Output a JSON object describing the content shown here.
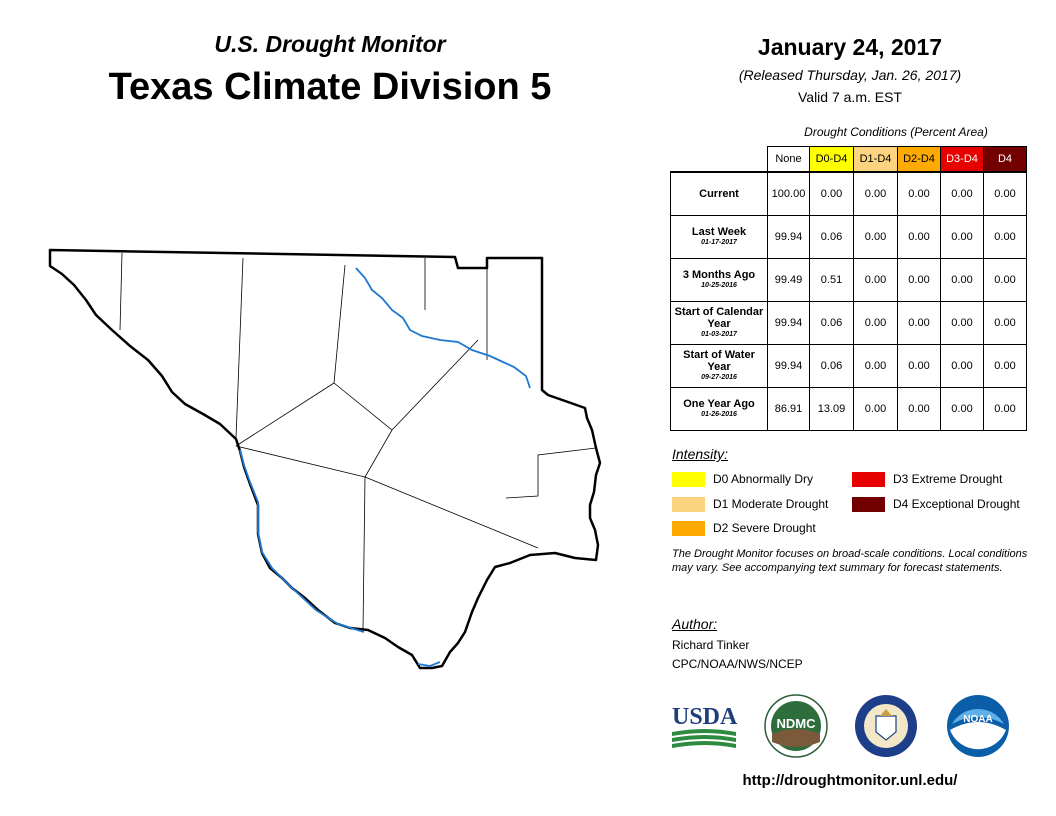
{
  "header": {
    "subtitle": "U.S. Drought Monitor",
    "title": "Texas Climate Division 5",
    "date": "January 24, 2017",
    "released": "(Released Thursday, Jan. 26, 2017)",
    "valid": "Valid 7 a.m. EST"
  },
  "table": {
    "caption": "Drought Conditions (Percent Area)",
    "columns": [
      {
        "label": "None",
        "color": "#ffffff",
        "text_color": "#000000"
      },
      {
        "label": "D0-D4",
        "color": "#ffff00",
        "text_color": "#000000"
      },
      {
        "label": "D1-D4",
        "color": "#fcd37f",
        "text_color": "#000000"
      },
      {
        "label": "D2-D4",
        "color": "#ffaa00",
        "text_color": "#000000"
      },
      {
        "label": "D3-D4",
        "color": "#e60000",
        "text_color": "#ffffff"
      },
      {
        "label": "D4",
        "color": "#730000",
        "text_color": "#ffffff"
      }
    ],
    "rows": [
      {
        "label": "Current",
        "date": "",
        "values": [
          "100.00",
          "0.00",
          "0.00",
          "0.00",
          "0.00",
          "0.00"
        ]
      },
      {
        "label": "Last Week",
        "date": "01-17-2017",
        "values": [
          "99.94",
          "0.06",
          "0.00",
          "0.00",
          "0.00",
          "0.00"
        ]
      },
      {
        "label": "3 Months Ago",
        "date": "10-25-2016",
        "values": [
          "99.49",
          "0.51",
          "0.00",
          "0.00",
          "0.00",
          "0.00"
        ]
      },
      {
        "label": "Start of Calendar Year",
        "date": "01-03-2017",
        "values": [
          "99.94",
          "0.06",
          "0.00",
          "0.00",
          "0.00",
          "0.00"
        ]
      },
      {
        "label": "Start of Water Year",
        "date": "09-27-2016",
        "values": [
          "99.94",
          "0.06",
          "0.00",
          "0.00",
          "0.00",
          "0.00"
        ]
      },
      {
        "label": "One Year Ago",
        "date": "01-26-2016",
        "values": [
          "86.91",
          "13.09",
          "0.00",
          "0.00",
          "0.00",
          "0.00"
        ]
      }
    ]
  },
  "legend": {
    "title": "Intensity:",
    "items": [
      {
        "label": "D0 Abnormally Dry",
        "color": "#ffff00"
      },
      {
        "label": "D1 Moderate Drought",
        "color": "#fcd37f"
      },
      {
        "label": "D2 Severe Drought",
        "color": "#ffaa00"
      },
      {
        "label": "D3 Extreme Drought",
        "color": "#e60000"
      },
      {
        "label": "D4 Exceptional Drought",
        "color": "#730000"
      }
    ]
  },
  "note": "The Drought Monitor focuses on broad-scale conditions. Local conditions may vary. See accompanying text summary for forecast statements.",
  "author": {
    "title": "Author:",
    "name": "Richard Tinker",
    "org": "CPC/NOAA/NWS/NCEP"
  },
  "logos": {
    "usda": "USDA",
    "ndmc": "NDMC",
    "noaa": "NOAA"
  },
  "url": "http://droughtmonitor.unl.edu/",
  "map": {
    "region": "Texas Climate Division 5",
    "fill_color": "#ffffff",
    "border_color": "#000000",
    "river_color": "#1e78d2"
  }
}
